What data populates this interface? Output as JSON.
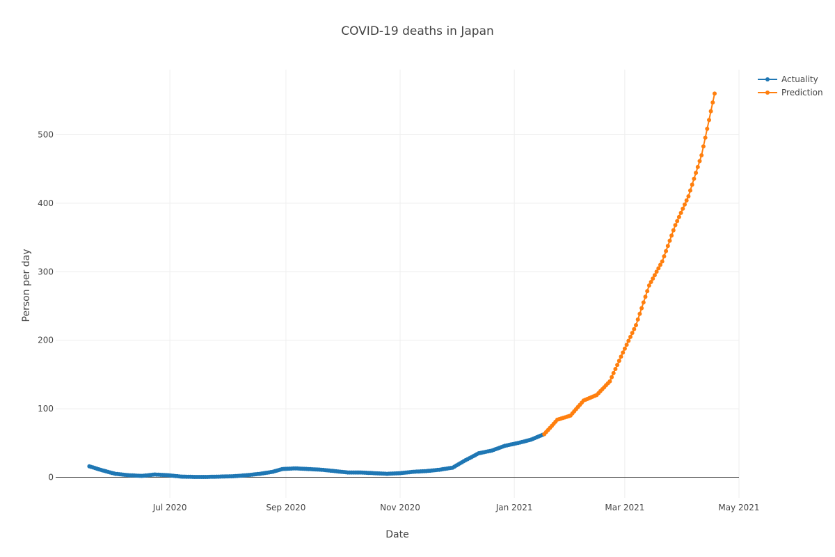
{
  "chart_data": {
    "type": "line",
    "title": "COVID-19 deaths in Japan",
    "xlabel": "Date",
    "ylabel": "Person per day",
    "x_range": [
      "2020-05-01",
      "2021-05-01"
    ],
    "ylim": [
      -30,
      595
    ],
    "x_ticks": [
      {
        "date": "2020-07-01",
        "label": "Jul 2020"
      },
      {
        "date": "2020-09-01",
        "label": "Sep 2020"
      },
      {
        "date": "2020-11-01",
        "label": "Nov 2020"
      },
      {
        "date": "2021-01-01",
        "label": "Jan 2021"
      },
      {
        "date": "2021-03-01",
        "label": "Mar 2021"
      },
      {
        "date": "2021-05-01",
        "label": "May 2021"
      }
    ],
    "y_ticks": [
      0,
      100,
      200,
      300,
      400,
      500
    ],
    "grid": true,
    "legend_position": "top-right",
    "series": [
      {
        "name": "Actuality",
        "color": "#1f77b4",
        "points": [
          [
            "2020-05-19",
            16
          ],
          [
            "2020-05-26",
            10
          ],
          [
            "2020-06-02",
            5
          ],
          [
            "2020-06-09",
            3
          ],
          [
            "2020-06-16",
            2
          ],
          [
            "2020-06-23",
            4
          ],
          [
            "2020-06-30",
            3
          ],
          [
            "2020-07-07",
            1
          ],
          [
            "2020-07-14",
            0.5
          ],
          [
            "2020-07-21",
            0.5
          ],
          [
            "2020-07-28",
            1
          ],
          [
            "2020-08-04",
            1.5
          ],
          [
            "2020-08-11",
            3
          ],
          [
            "2020-08-18",
            5
          ],
          [
            "2020-08-25",
            8
          ],
          [
            "2020-08-30",
            12
          ],
          [
            "2020-09-06",
            13
          ],
          [
            "2020-09-13",
            12
          ],
          [
            "2020-09-20",
            11
          ],
          [
            "2020-09-27",
            9
          ],
          [
            "2020-10-04",
            7
          ],
          [
            "2020-10-11",
            7
          ],
          [
            "2020-10-18",
            6
          ],
          [
            "2020-10-25",
            5
          ],
          [
            "2020-11-01",
            6
          ],
          [
            "2020-11-08",
            8
          ],
          [
            "2020-11-15",
            9
          ],
          [
            "2020-11-22",
            11
          ],
          [
            "2020-11-29",
            14
          ],
          [
            "2020-12-06",
            25
          ],
          [
            "2020-12-13",
            35
          ],
          [
            "2020-12-20",
            39
          ],
          [
            "2020-12-27",
            46
          ],
          [
            "2021-01-03",
            50
          ],
          [
            "2021-01-10",
            55
          ],
          [
            "2021-01-17",
            63
          ]
        ]
      },
      {
        "name": "Prediction",
        "color": "#ff7f0e",
        "points": [
          [
            "2021-01-17",
            63
          ],
          [
            "2021-01-24",
            84
          ],
          [
            "2021-01-31",
            90
          ],
          [
            "2021-02-07",
            112
          ],
          [
            "2021-02-14",
            120
          ],
          [
            "2021-02-21",
            140
          ],
          [
            "2021-02-28",
            182
          ],
          [
            "2021-03-07",
            222
          ],
          [
            "2021-03-14",
            280
          ],
          [
            "2021-03-21",
            315
          ],
          [
            "2021-03-28",
            368
          ],
          [
            "2021-04-04",
            410
          ],
          [
            "2021-04-11",
            470
          ],
          [
            "2021-04-18",
            560
          ]
        ]
      }
    ]
  }
}
